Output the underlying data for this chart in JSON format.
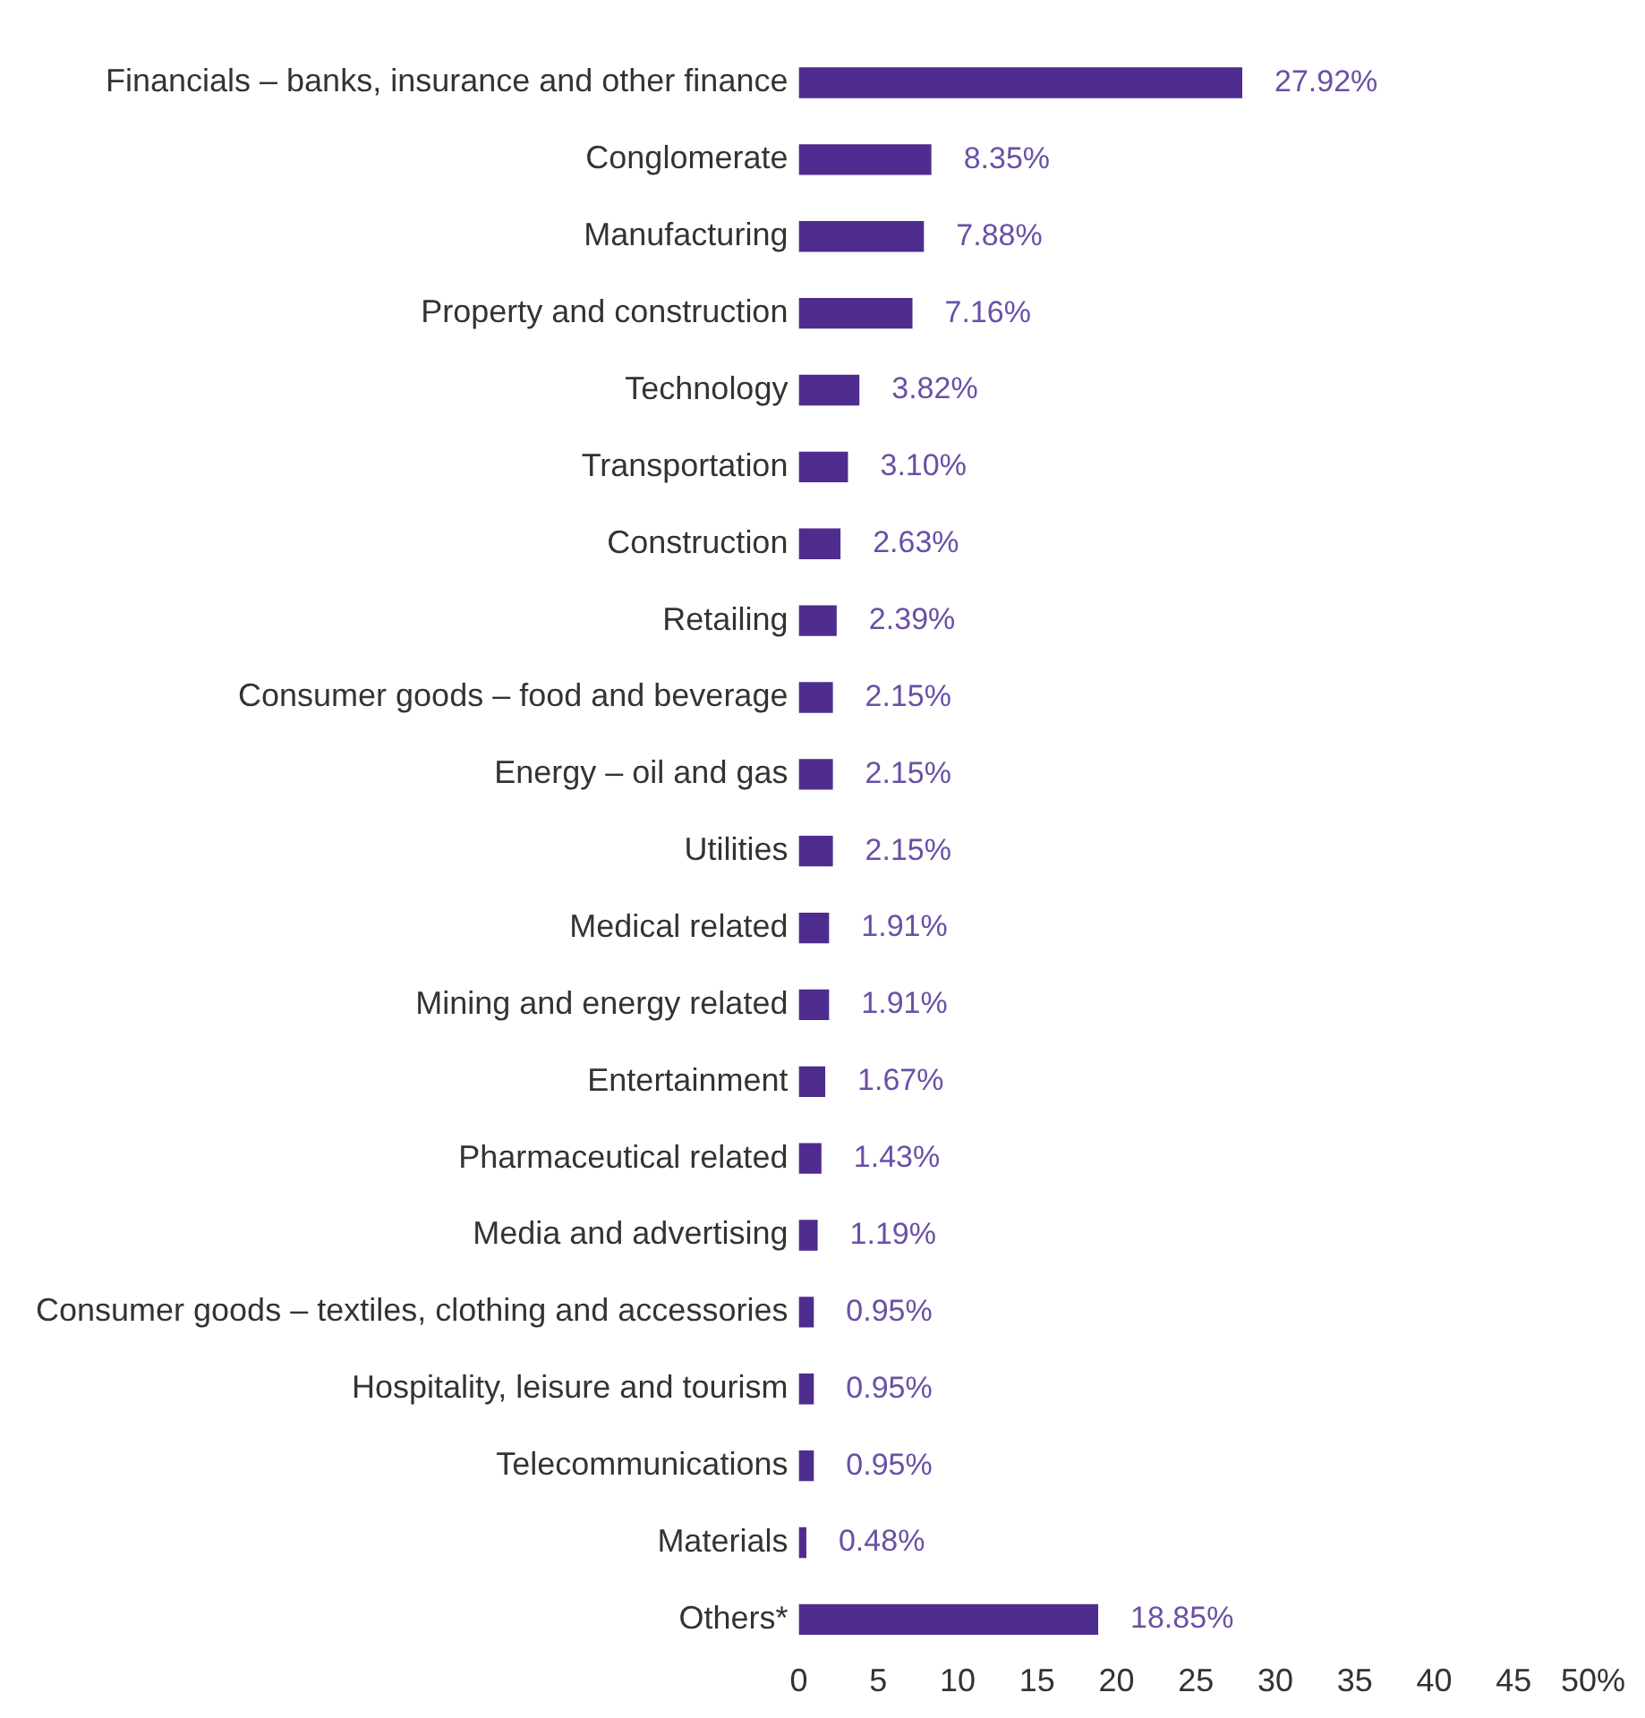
{
  "chart_data": {
    "type": "bar",
    "orientation": "horizontal",
    "categories": [
      "Financials – banks, insurance and other finance",
      "Conglomerate",
      "Manufacturing",
      "Property and construction",
      "Technology",
      "Transportation",
      "Construction",
      "Retailing",
      "Consumer goods – food and beverage",
      "Energy – oil and gas",
      "Utilities",
      "Medical related",
      "Mining and energy related",
      "Entertainment",
      "Pharmaceutical related",
      "Media and advertising",
      "Consumer goods – textiles, clothing and accessories",
      "Hospitality, leisure and tourism",
      "Telecommunications",
      "Materials",
      "Others*"
    ],
    "values": [
      27.92,
      8.35,
      7.88,
      7.16,
      3.82,
      3.1,
      2.63,
      2.39,
      2.15,
      2.15,
      2.15,
      1.91,
      1.91,
      1.67,
      1.43,
      1.19,
      0.95,
      0.95,
      0.95,
      0.48,
      18.85
    ],
    "value_labels": [
      "27.92%",
      "8.35%",
      "7.88%",
      "7.16%",
      "3.82%",
      "3.10%",
      "2.63%",
      "2.39%",
      "2.15%",
      "2.15%",
      "2.15%",
      "1.91%",
      "1.91%",
      "1.67%",
      "1.43%",
      "1.19%",
      "0.95%",
      "0.95%",
      "0.95%",
      "0.48%",
      "18.85%"
    ],
    "color": "#4f2d8f",
    "xlim": [
      0,
      50
    ],
    "xticks": [
      0,
      5,
      10,
      15,
      20,
      25,
      30,
      35,
      40,
      45,
      {
        "value": 50,
        "label": "50%"
      }
    ],
    "grid": false,
    "legend": false
  }
}
